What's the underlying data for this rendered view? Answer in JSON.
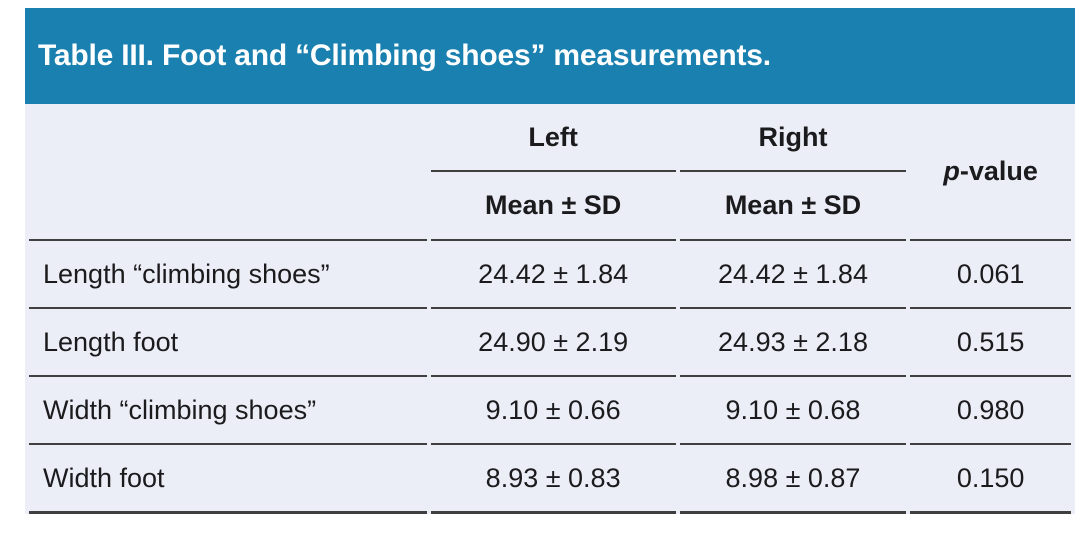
{
  "title": "Table III. Foot and “Climbing shoes” measurements.",
  "table": {
    "group_headers": [
      {
        "label": "Left"
      },
      {
        "label": "Right"
      }
    ],
    "sub_header": "Mean ± SD",
    "p_header": {
      "italic": "p",
      "rest": "-value"
    },
    "rows": [
      {
        "label": "Length “climbing shoes”",
        "left": "24.42 ± 1.84",
        "right": "24.42 ± 1.84",
        "p": "0.061"
      },
      {
        "label": "Length foot",
        "left": "24.90 ± 2.19",
        "right": "24.93 ± 2.18",
        "p": "0.515"
      },
      {
        "label": "Width “climbing shoes”",
        "left": "9.10 ± 0.66",
        "right": "9.10 ± 0.68",
        "p": "0.980"
      },
      {
        "label": "Width foot",
        "left": "8.93 ± 0.83",
        "right": "8.98 ± 0.87",
        "p": "0.150"
      }
    ]
  },
  "colors": {
    "header_blue": "#1a80b0",
    "body_background": "#ebeef7",
    "rule_gray": "#3f3f3f",
    "text_ink": "#1b1b1d",
    "title_text": "#ffffff"
  }
}
